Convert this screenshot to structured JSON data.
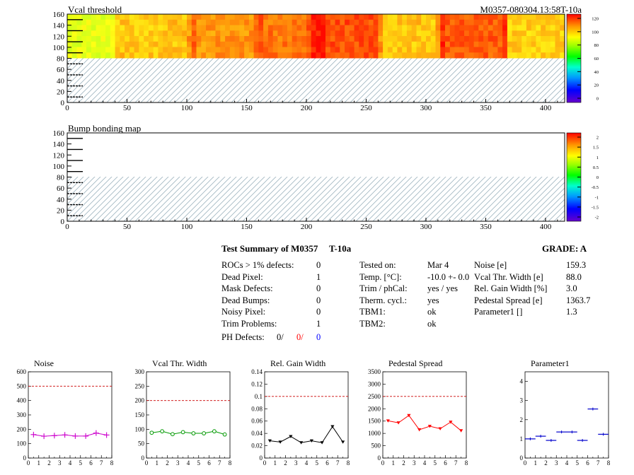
{
  "maps": [
    {
      "id": "vcal",
      "title": "Vcal threshold",
      "right_label": "M0357-080304.13:58T-10a",
      "x_ticks": [
        0,
        50,
        100,
        150,
        200,
        250,
        300,
        350,
        400
      ],
      "y_ticks": [
        0,
        20,
        40,
        60,
        80,
        100,
        120,
        140,
        160
      ],
      "xlim": [
        0,
        416
      ],
      "ylim": [
        0,
        160
      ],
      "palette_labels": [
        "120",
        "100",
        "80",
        "60",
        "40",
        "20",
        "0"
      ],
      "palette_range": [
        0,
        130
      ],
      "filled_rows": [
        80,
        160
      ],
      "hatched_rows": [
        0,
        80
      ]
    },
    {
      "id": "bump",
      "title": "Bump bonding map",
      "right_label": "",
      "x_ticks": [
        0,
        50,
        100,
        150,
        200,
        250,
        300,
        350,
        400
      ],
      "y_ticks": [
        0,
        20,
        40,
        60,
        80,
        100,
        120,
        140,
        160
      ],
      "xlim": [
        0,
        416
      ],
      "ylim": [
        0,
        160
      ],
      "palette_labels": [
        "2",
        "1.5",
        "1",
        "0.5",
        "0",
        "-0.5",
        "-1",
        "-1.5",
        "-2"
      ],
      "palette_range": [
        -2,
        2
      ],
      "filled_rows": [
        80,
        160
      ],
      "hatched_rows": [
        0,
        80
      ]
    }
  ],
  "summary": {
    "title": "Test Summary of M0357",
    "temp_tag": "T-10a",
    "grade": "GRADE:  A",
    "defects": [
      {
        "label": "ROCs > 1% defects:",
        "value": "0"
      },
      {
        "label": "Dead Pixel:",
        "value": "1"
      },
      {
        "label": "Mask Defects:",
        "value": "0"
      },
      {
        "label": "Dead Bumps:",
        "value": "0"
      },
      {
        "label": "Noisy Pixel:",
        "value": "0"
      },
      {
        "label": "Trim Problems:",
        "value": "1"
      }
    ],
    "ph_label": "PH Defects:",
    "ph_values": [
      {
        "text": "0/",
        "color": "#000000"
      },
      {
        "text": "0/",
        "color": "#ff0000"
      },
      {
        "text": "0",
        "color": "#0000ff"
      }
    ],
    "tests": [
      {
        "label": "Tested on:",
        "value": "Mar 4"
      },
      {
        "label": "Temp. [°C]:",
        "value": "-10.0 +- 0.0"
      },
      {
        "label": "Trim / phCal:",
        "value": "yes / yes"
      },
      {
        "label": "Therm. cycl.:",
        "value": "yes"
      },
      {
        "label": "TBM1:",
        "value": "ok"
      },
      {
        "label": "TBM2:",
        "value": "ok"
      }
    ],
    "params": [
      {
        "label": "Noise [e]",
        "value": "159.3"
      },
      {
        "label": "Vcal Thr. Width [e]",
        "value": "88.0"
      },
      {
        "label": "Rel. Gain Width [%]",
        "value": "3.0"
      },
      {
        "label": "Pedestal Spread [e]",
        "value": "1363.7"
      },
      {
        "label": "Parameter1 []",
        "value": "1.3"
      }
    ]
  },
  "chart_data": [
    {
      "type": "line",
      "title": "Noise",
      "x": [
        0.5,
        1.5,
        2.5,
        3.5,
        4.5,
        5.5,
        6.5,
        7.5
      ],
      "values": [
        163,
        152,
        156,
        161,
        153,
        153,
        174,
        160
      ],
      "marker": "plus",
      "color": "#cc00cc",
      "ylim": [
        0,
        600
      ],
      "y_ticks": [
        0,
        100,
        200,
        300,
        400,
        500,
        600
      ],
      "xlim": [
        0,
        8
      ],
      "x_ticks": [
        0,
        1,
        2,
        3,
        4,
        5,
        6,
        7,
        8
      ],
      "limit": 500
    },
    {
      "type": "line",
      "title": "Vcal Thr. Width",
      "x": [
        0.5,
        1.5,
        2.5,
        3.5,
        4.5,
        5.5,
        6.5,
        7.5
      ],
      "values": [
        88,
        93,
        83,
        90,
        86,
        86,
        93,
        82
      ],
      "marker": "circle",
      "color": "#009900",
      "ylim": [
        0,
        300
      ],
      "y_ticks": [
        0,
        50,
        100,
        150,
        200,
        250,
        300
      ],
      "xlim": [
        0,
        8
      ],
      "x_ticks": [
        0,
        1,
        2,
        3,
        4,
        5,
        6,
        7,
        8
      ],
      "limit": 200
    },
    {
      "type": "line",
      "title": "Rel. Gain Width",
      "x": [
        0.5,
        1.5,
        2.5,
        3.5,
        4.5,
        5.5,
        6.5,
        7.5
      ],
      "values": [
        0.028,
        0.026,
        0.035,
        0.025,
        0.028,
        0.025,
        0.051,
        0.026
      ],
      "marker": "triangle",
      "color": "#000000",
      "ylim": [
        0,
        0.14
      ],
      "y_ticks": [
        0,
        0.02,
        0.04,
        0.06,
        0.08,
        0.1,
        0.12,
        0.14
      ],
      "y_tick_labels": [
        "0",
        "0.02",
        "0.04",
        "0.06",
        "0.08",
        "0.1",
        "0.12",
        "0.14"
      ],
      "xlim": [
        0,
        8
      ],
      "x_ticks": [
        0,
        1,
        2,
        3,
        4,
        5,
        6,
        7,
        8
      ],
      "limit": 0.1
    },
    {
      "type": "line",
      "title": "Pedestal Spread",
      "x": [
        0.5,
        1.5,
        2.5,
        3.5,
        4.5,
        5.5,
        6.5,
        7.5
      ],
      "values": [
        1510,
        1430,
        1730,
        1150,
        1290,
        1190,
        1460,
        1110
      ],
      "marker": "triangle",
      "color": "#ff0000",
      "ylim": [
        0,
        3500
      ],
      "y_ticks": [
        0,
        500,
        1000,
        1500,
        2000,
        2500,
        3000,
        3500
      ],
      "xlim": [
        0,
        8
      ],
      "x_ticks": [
        0,
        1,
        2,
        3,
        4,
        5,
        6,
        7,
        8
      ],
      "limit": 2500
    },
    {
      "type": "scatter",
      "title": "Parameter1",
      "x": [
        0.5,
        1.5,
        2.5,
        3.5,
        4.5,
        5.5,
        6.5,
        7.5
      ],
      "values": [
        1.0,
        1.14,
        0.92,
        1.36,
        1.36,
        0.92,
        2.56,
        1.24
      ],
      "marker": "hline",
      "color": "#0000cc",
      "ylim": [
        0,
        4.5
      ],
      "y_ticks": [
        0,
        1,
        2,
        3,
        4
      ],
      "xlim": [
        0,
        8
      ],
      "x_ticks": [
        0,
        1,
        2,
        3,
        4,
        5,
        6,
        7,
        8
      ],
      "limit": null
    }
  ]
}
